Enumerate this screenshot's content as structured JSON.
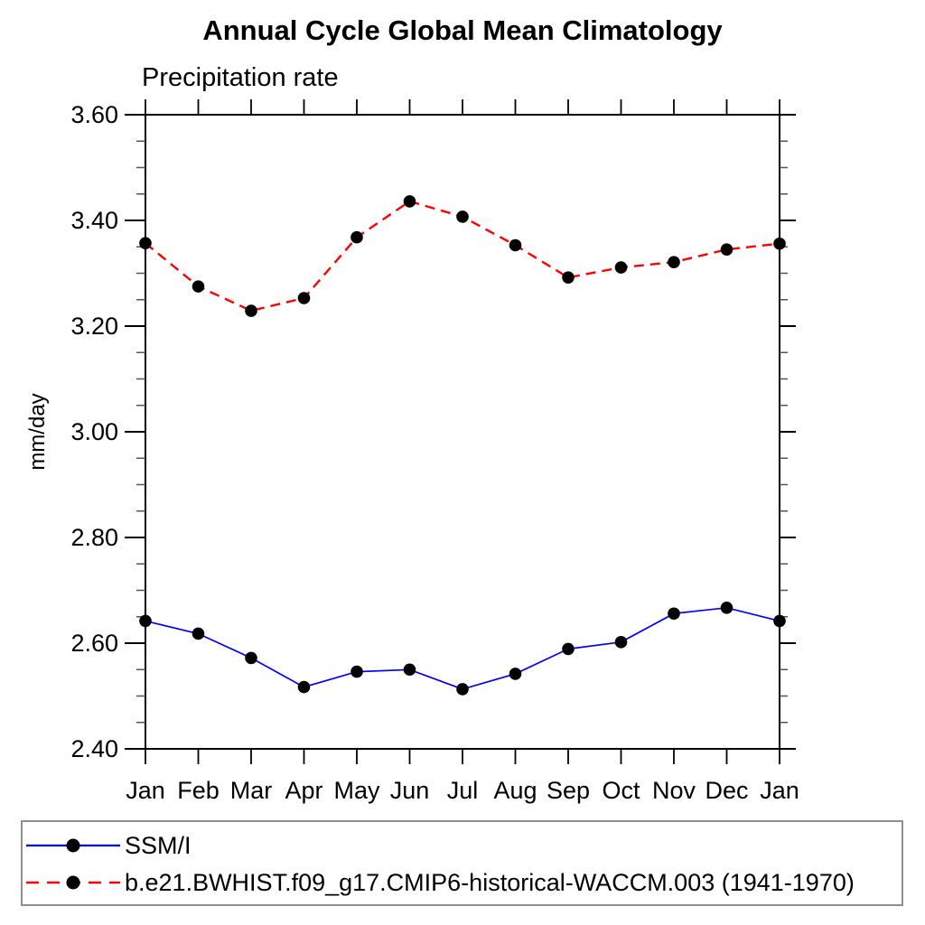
{
  "chart_data": {
    "type": "line",
    "title": "Annual Cycle Global Mean Climatology",
    "subtitle": "Precipitation rate",
    "ylabel": "mm/day",
    "x_categories": [
      "Jan",
      "Feb",
      "Mar",
      "Apr",
      "May",
      "Jun",
      "Jul",
      "Aug",
      "Sep",
      "Oct",
      "Nov",
      "Dec",
      "Jan"
    ],
    "ylim": [
      2.4,
      3.6
    ],
    "y_major_step": 0.2,
    "y_minor_step": 0.05,
    "y_tick_labels": [
      "2.40",
      "2.60",
      "2.80",
      "3.00",
      "3.20",
      "3.40",
      "3.60"
    ],
    "grid": false,
    "legend_position": "bottom-left-box",
    "colors": {
      "axis": "#000000",
      "minor_tick": "#555555",
      "legend_border": "#909090",
      "marker": "#000000"
    },
    "series": [
      {
        "name": "SSM/I",
        "color": "#0000ff",
        "line_style": "solid",
        "marker": "filled-circle",
        "marker_color": "#000000",
        "values": [
          2.642,
          2.618,
          2.572,
          2.517,
          2.546,
          2.55,
          2.513,
          2.542,
          2.589,
          2.602,
          2.656,
          2.667,
          2.642
        ]
      },
      {
        "name": "b.e21.BWHIST.f09_g17.CMIP6-historical-WACCM.003 (1941-1970)",
        "color": "#ff0000",
        "line_style": "dashed",
        "marker": "filled-circle",
        "marker_color": "#000000",
        "values": [
          3.357,
          3.275,
          3.229,
          3.253,
          3.368,
          3.436,
          3.407,
          3.353,
          3.292,
          3.311,
          3.321,
          3.345,
          3.356
        ]
      }
    ]
  }
}
